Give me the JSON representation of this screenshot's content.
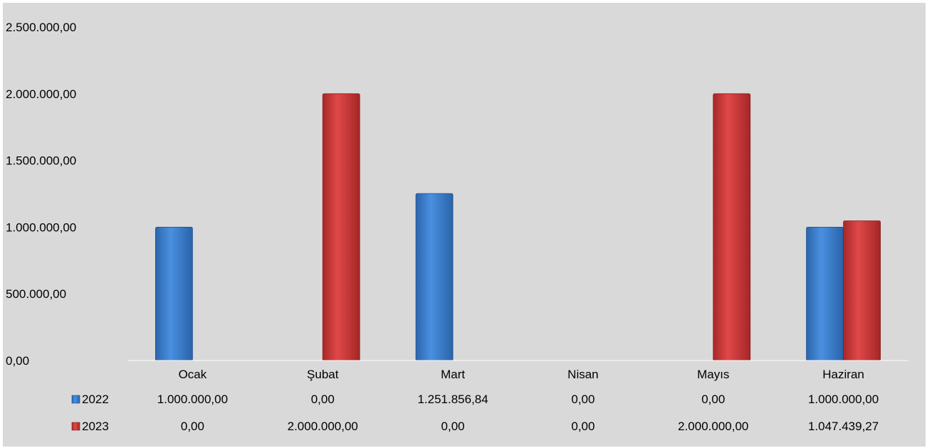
{
  "chart_data": {
    "type": "bar",
    "categories": [
      "Ocak",
      "Şubat",
      "Mart",
      "Nisan",
      "Mayıs",
      "Haziran"
    ],
    "series": [
      {
        "name": "2022",
        "color": "#3a7fd0",
        "values": [
          1000000.0,
          0.0,
          1251856.84,
          0.0,
          0.0,
          1000000.0
        ],
        "value_labels": [
          "1.000.000,00",
          "0,00",
          "1.251.856,84",
          "0,00",
          "0,00",
          "1.000.000,00"
        ]
      },
      {
        "name": "2023",
        "color": "#d03a3a",
        "values": [
          0.0,
          2000000.0,
          0.0,
          0.0,
          2000000.0,
          1047439.27
        ],
        "value_labels": [
          "0,00",
          "2.000.000,00",
          "0,00",
          "0,00",
          "2.000.000,00",
          "1.047.439,27"
        ]
      }
    ],
    "y_ticks": [
      "0,00",
      "500.000,00",
      "1.000.000,00",
      "1.500.000,00",
      "2.000.000,00",
      "2.500.000,00"
    ],
    "ylim": [
      0,
      2500000
    ],
    "grid": false,
    "legend": "data-table",
    "background": "#d9d9d9"
  }
}
